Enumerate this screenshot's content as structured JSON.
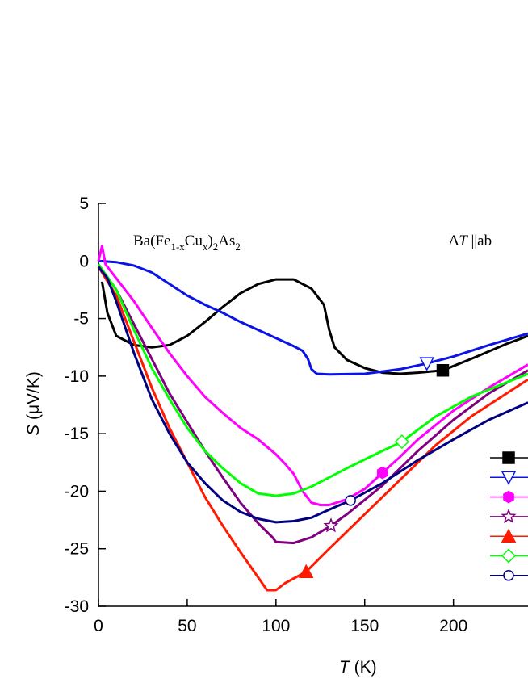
{
  "chart_data": {
    "type": "line",
    "annotation_left": [
      "Ba(Fe",
      "1-x",
      "Cu",
      "x",
      ")",
      "2",
      "As",
      "2"
    ],
    "annotation_right": [
      "Δ",
      "T",
      " ||ab"
    ],
    "xlabel": [
      "T",
      " (K)"
    ],
    "ylabel": [
      "S",
      " (μV/K)"
    ],
    "xlim": [
      0,
      242
    ],
    "xticks": [
      0,
      50,
      100,
      150,
      200
    ],
    "ylim": [
      -30,
      5
    ],
    "yticks": [
      5,
      0,
      -5,
      -10,
      -15,
      -20,
      -25,
      -30
    ],
    "series": [
      {
        "color": "#000000",
        "marker": "square",
        "marker_point": [
          194,
          -9.5
        ],
        "x": [
          2,
          5,
          10,
          20,
          30,
          40,
          50,
          60,
          70,
          80,
          90,
          100,
          110,
          120,
          127,
          130,
          133,
          140,
          150,
          160,
          170,
          180,
          194,
          210,
          230,
          242
        ],
        "values": [
          -1.8,
          -4.5,
          -6.5,
          -7.3,
          -7.5,
          -7.3,
          -6.5,
          -5.3,
          -4,
          -2.8,
          -2,
          -1.6,
          -1.6,
          -2.4,
          -3.8,
          -6,
          -7.5,
          -8.6,
          -9.3,
          -9.7,
          -9.8,
          -9.7,
          -9.5,
          -8.5,
          -7.2,
          -6.5
        ]
      },
      {
        "color": "#0a14e6",
        "marker": "triangle-down",
        "marker_point": [
          185,
          -8.9
        ],
        "x": [
          0,
          10,
          20,
          30,
          40,
          50,
          60,
          70,
          80,
          90,
          100,
          110,
          115,
          118,
          120,
          123,
          130,
          150,
          170,
          185,
          200,
          220,
          242
        ],
        "values": [
          0,
          -0.1,
          -0.4,
          -1,
          -2,
          -3,
          -3.8,
          -4.5,
          -5.3,
          -6,
          -6.7,
          -7.4,
          -7.8,
          -8.5,
          -9.4,
          -9.8,
          -9.85,
          -9.8,
          -9.4,
          -8.9,
          -8.3,
          -7.3,
          -6.3
        ]
      },
      {
        "color": "#ff00ff",
        "marker": "hexagon",
        "marker_point": [
          160,
          -18.4
        ],
        "x": [
          0,
          2,
          4,
          10,
          20,
          30,
          40,
          50,
          60,
          70,
          80,
          90,
          100,
          105,
          110,
          115,
          120,
          125,
          130,
          140,
          150,
          160,
          170,
          180,
          200,
          220,
          242
        ],
        "values": [
          0,
          1.3,
          -0.3,
          -1.5,
          -3.5,
          -5.8,
          -8,
          -10,
          -11.8,
          -13.2,
          -14.5,
          -15.5,
          -16.8,
          -17.6,
          -18.5,
          -20,
          -21,
          -21.2,
          -21.2,
          -20.7,
          -19.8,
          -18.4,
          -17,
          -15.5,
          -13,
          -11,
          -9
        ]
      },
      {
        "color": "#800080",
        "marker": "star",
        "marker_point": [
          131,
          -23
        ],
        "x": [
          0,
          10,
          20,
          30,
          40,
          50,
          60,
          70,
          80,
          90,
          98,
          100,
          110,
          120,
          131,
          140,
          160,
          180,
          200,
          220,
          242
        ],
        "values": [
          -0.3,
          -2.5,
          -5.5,
          -8.5,
          -11.5,
          -14,
          -16.5,
          -18.8,
          -21,
          -22.8,
          -24,
          -24.4,
          -24.5,
          -24,
          -23,
          -22,
          -19.5,
          -16.5,
          -13.8,
          -11.5,
          -9.5
        ]
      },
      {
        "color": "#ff1a00",
        "marker": "triangle-up",
        "marker_point": [
          117,
          -27
        ],
        "x": [
          0,
          10,
          20,
          30,
          40,
          50,
          60,
          70,
          80,
          90,
          95,
          100,
          105,
          117,
          130,
          150,
          170,
          190,
          210,
          230,
          242
        ],
        "values": [
          -0.5,
          -3,
          -7,
          -11,
          -14.5,
          -17.5,
          -20.5,
          -23,
          -25.3,
          -27.5,
          -28.6,
          -28.6,
          -28,
          -27,
          -25,
          -22,
          -19,
          -16,
          -13.5,
          -11.5,
          -10.3
        ]
      },
      {
        "color": "#00ff00",
        "marker": "diamond",
        "marker_point": [
          171,
          -15.7
        ],
        "x": [
          0,
          10,
          20,
          30,
          40,
          50,
          60,
          70,
          80,
          90,
          100,
          110,
          120,
          140,
          160,
          171,
          190,
          210,
          242
        ],
        "values": [
          -0.3,
          -2.5,
          -6,
          -9.3,
          -12,
          -14.5,
          -16.5,
          -18,
          -19.3,
          -20.2,
          -20.4,
          -20.2,
          -19.6,
          -18,
          -16.5,
          -15.7,
          -13.5,
          -11.8,
          -9.8
        ]
      },
      {
        "color": "#000080",
        "marker": "circle",
        "marker_point": [
          142,
          -20.8
        ],
        "x": [
          0,
          5,
          10,
          20,
          30,
          40,
          50,
          60,
          70,
          80,
          90,
          100,
          110,
          120,
          130,
          142,
          160,
          180,
          200,
          220,
          242
        ],
        "values": [
          -0.5,
          -1.5,
          -3.5,
          -8,
          -12,
          -15,
          -17.5,
          -19.3,
          -20.8,
          -21.8,
          -22.4,
          -22.7,
          -22.6,
          -22.3,
          -21.6,
          -20.8,
          -19.3,
          -17.3,
          -15.5,
          -13.8,
          -12.3
        ]
      }
    ]
  }
}
